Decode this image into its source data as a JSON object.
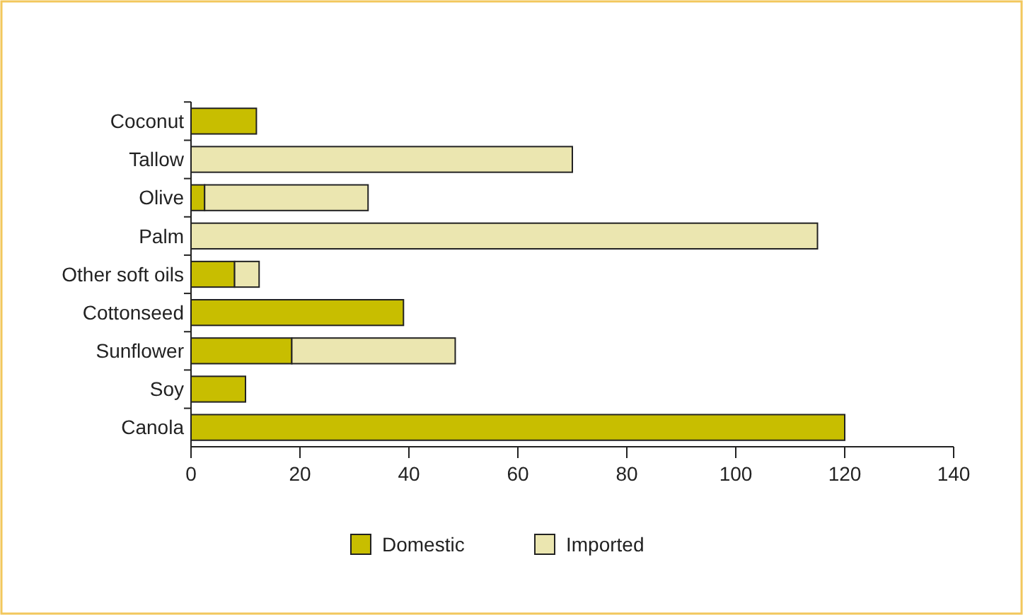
{
  "chart_data": {
    "type": "bar",
    "orientation": "horizontal",
    "stacked": true,
    "categories": [
      "Coconut",
      "Tallow",
      "Olive",
      "Palm",
      "Other soft oils",
      "Cottonseed",
      "Sunflower",
      "Soy",
      "Canola"
    ],
    "series": [
      {
        "name": "Domestic",
        "color": "#c8be00",
        "values": [
          12,
          0,
          2.5,
          0,
          8,
          39,
          18.5,
          10,
          120
        ]
      },
      {
        "name": "Imported",
        "color": "#ebe6b0",
        "values": [
          0,
          70,
          30,
          115,
          4.5,
          0,
          30,
          0,
          0
        ]
      }
    ],
    "xlim": [
      0,
      140
    ],
    "xticks": [
      0,
      20,
      40,
      60,
      80,
      100,
      120,
      140
    ],
    "grid": false,
    "legend": "bottom"
  }
}
